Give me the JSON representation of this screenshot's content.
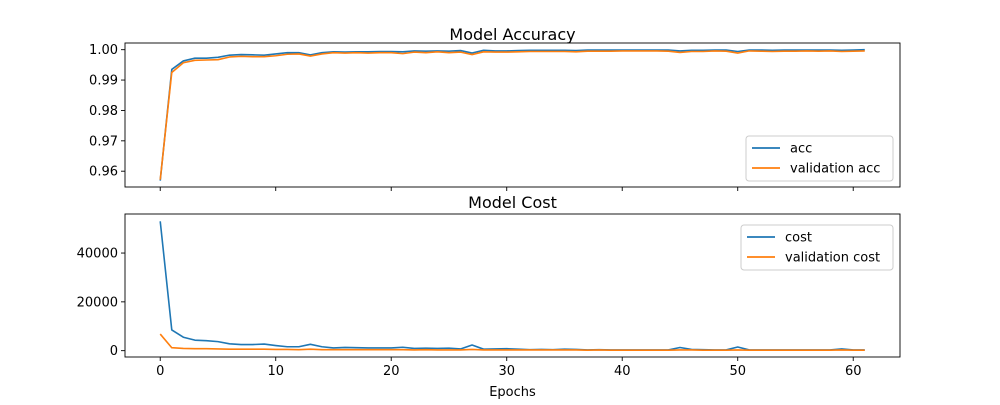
{
  "chart_data": [
    {
      "type": "line",
      "title": "Model Accuracy",
      "xlabel": "",
      "ylabel": "",
      "xlim": [
        -3.05,
        64.05
      ],
      "ylim": [
        0.9548,
        1.0022
      ],
      "xticks": [
        0,
        10,
        20,
        30,
        40,
        50,
        60
      ],
      "yticks": [
        0.96,
        0.97,
        0.98,
        0.99,
        1.0
      ],
      "ytick_labels": [
        "0.96",
        "0.97",
        "0.98",
        "0.99",
        "1.00"
      ],
      "show_x_tick_labels": false,
      "grid": false,
      "legend_position": "lower-right",
      "x": [
        0,
        1,
        2,
        3,
        4,
        5,
        6,
        7,
        8,
        9,
        10,
        11,
        12,
        13,
        14,
        15,
        16,
        17,
        18,
        19,
        20,
        21,
        22,
        23,
        24,
        25,
        26,
        27,
        28,
        29,
        30,
        31,
        32,
        33,
        34,
        35,
        36,
        37,
        38,
        39,
        40,
        41,
        42,
        43,
        44,
        45,
        46,
        47,
        48,
        49,
        50,
        51,
        52,
        53,
        54,
        55,
        56,
        57,
        58,
        59,
        60,
        61
      ],
      "series": [
        {
          "name": "acc",
          "color": "#1f77b4",
          "values": [
            0.9569,
            0.9935,
            0.9963,
            0.9972,
            0.9972,
            0.9975,
            0.9982,
            0.9984,
            0.9983,
            0.9982,
            0.9986,
            0.999,
            0.999,
            0.9983,
            0.999,
            0.9993,
            0.9992,
            0.9993,
            0.9993,
            0.9994,
            0.9994,
            0.9993,
            0.9996,
            0.9995,
            0.9996,
            0.9995,
            0.9997,
            0.9989,
            0.9998,
            0.9996,
            0.9996,
            0.9997,
            0.9998,
            0.9998,
            0.9998,
            0.9998,
            0.9997,
            0.9999,
            0.9999,
            0.9999,
            0.9999,
            0.9999,
            0.9999,
            0.9999,
            0.9999,
            0.9996,
            0.9998,
            0.9998,
            0.9999,
            0.9999,
            0.9994,
            0.9999,
            0.9999,
            0.9998,
            0.9999,
            0.9999,
            0.9999,
            0.9999,
            0.9999,
            0.9998,
            0.9999,
            1.0
          ]
        },
        {
          "name": "validation acc",
          "color": "#ff7f0e",
          "values": [
            0.9572,
            0.9925,
            0.9957,
            0.9965,
            0.9966,
            0.9967,
            0.9976,
            0.9978,
            0.9977,
            0.9977,
            0.998,
            0.9985,
            0.9986,
            0.9979,
            0.9986,
            0.999,
            0.9989,
            0.999,
            0.9989,
            0.999,
            0.999,
            0.9987,
            0.9992,
            0.999,
            0.9993,
            0.999,
            0.9992,
            0.9984,
            0.9993,
            0.9992,
            0.9992,
            0.9993,
            0.9994,
            0.9994,
            0.9994,
            0.9994,
            0.9993,
            0.9995,
            0.9995,
            0.9995,
            0.9996,
            0.9996,
            0.9996,
            0.9996,
            0.9995,
            0.9991,
            0.9994,
            0.9994,
            0.9996,
            0.9995,
            0.9989,
            0.9996,
            0.9995,
            0.9994,
            0.9995,
            0.9995,
            0.9996,
            0.9995,
            0.9996,
            0.9994,
            0.9995,
            0.9996
          ]
        }
      ]
    },
    {
      "type": "line",
      "title": "Model Cost",
      "xlabel": "Epochs",
      "ylabel": "",
      "xlim": [
        -3.05,
        64.05
      ],
      "ylim": [
        -2600,
        56000
      ],
      "xticks": [
        0,
        10,
        20,
        30,
        40,
        50,
        60
      ],
      "xtick_labels": [
        "0",
        "10",
        "20",
        "30",
        "40",
        "50",
        "60"
      ],
      "yticks": [
        0,
        20000,
        40000
      ],
      "ytick_labels": [
        "0",
        "20000",
        "40000"
      ],
      "grid": false,
      "legend_position": "top-right",
      "x": [
        0,
        1,
        2,
        3,
        4,
        5,
        6,
        7,
        8,
        9,
        10,
        11,
        12,
        13,
        14,
        15,
        16,
        17,
        18,
        19,
        20,
        21,
        22,
        23,
        24,
        25,
        26,
        27,
        28,
        29,
        30,
        31,
        32,
        33,
        34,
        35,
        36,
        37,
        38,
        39,
        40,
        41,
        42,
        43,
        44,
        45,
        46,
        47,
        48,
        49,
        50,
        51,
        52,
        53,
        54,
        55,
        56,
        57,
        58,
        59,
        60,
        61
      ],
      "series": [
        {
          "name": "cost",
          "color": "#1f77b4",
          "values": [
            53000,
            8500,
            5500,
            4300,
            4100,
            3700,
            2800,
            2500,
            2500,
            2700,
            2100,
            1600,
            1600,
            2600,
            1600,
            1100,
            1300,
            1200,
            1100,
            1100,
            1100,
            1400,
            900,
            1000,
            900,
            1000,
            700,
            2300,
            600,
            700,
            800,
            600,
            400,
            500,
            400,
            600,
            500,
            300,
            400,
            300,
            300,
            300,
            300,
            300,
            300,
            1300,
            500,
            400,
            300,
            300,
            1500,
            300,
            300,
            300,
            300,
            300,
            300,
            300,
            300,
            700,
            300,
            300
          ]
        },
        {
          "name": "validation cost",
          "color": "#ff7f0e",
          "values": [
            6800,
            1200,
            900,
            800,
            800,
            700,
            600,
            600,
            600,
            600,
            500,
            500,
            400,
            600,
            400,
            400,
            400,
            400,
            400,
            400,
            400,
            400,
            300,
            400,
            300,
            300,
            300,
            500,
            300,
            300,
            300,
            300,
            300,
            300,
            300,
            300,
            300,
            200,
            300,
            200,
            200,
            200,
            200,
            200,
            200,
            300,
            300,
            200,
            200,
            200,
            300,
            200,
            200,
            200,
            200,
            200,
            200,
            200,
            200,
            300,
            200,
            200
          ]
        }
      ]
    }
  ]
}
